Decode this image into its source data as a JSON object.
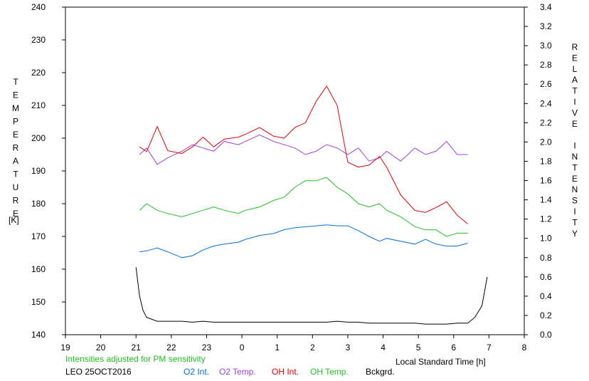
{
  "chart_data": {
    "type": "line",
    "xlabel": "Local Standard Time [h]",
    "y_left_label": "TEMPERATURE",
    "y_left_unit": "[K]",
    "y_right_label": "RELATIVE INTENSITY",
    "x_ticks": [
      "19",
      "20",
      "21",
      "22",
      "23",
      "0",
      "1",
      "2",
      "3",
      "4",
      "5",
      "6",
      "7",
      "8"
    ],
    "y_left_ticks": [
      "140",
      "150",
      "160",
      "170",
      "180",
      "190",
      "200",
      "210",
      "220",
      "230",
      "240"
    ],
    "y_right_ticks": [
      "0.0",
      "0.2",
      "0.4",
      "0.6",
      "0.8",
      "1.0",
      "1.2",
      "1.4",
      "1.6",
      "1.8",
      "2.0",
      "2.2",
      "2.4",
      "2.6",
      "2.8",
      "3.0",
      "3.2",
      "3.4"
    ],
    "xlim": [
      19,
      32
    ],
    "ylim_left": [
      140,
      240
    ],
    "ylim_right": [
      0,
      3.4
    ],
    "note": "Intensities adjusted for PM sensitivity",
    "station": "LEO 25OCT2016",
    "legend": [
      {
        "label": "O2 Int.",
        "color": "#0070e0"
      },
      {
        "label": "O2 Temp.",
        "color": "#a040e0"
      },
      {
        "label": "OH Int.",
        "color": "#e00000"
      },
      {
        "label": "OH Temp.",
        "color": "#20c020"
      },
      {
        "label": "Bckgrd.",
        "color": "#000000"
      }
    ],
    "series": [
      {
        "name": "O2 Int.",
        "axis": "right",
        "color": "#0070e0",
        "x": [
          21.1,
          21.3,
          21.6,
          21.9,
          22.3,
          22.6,
          22.9,
          23.2,
          23.5,
          23.9,
          24.1,
          24.5,
          24.9,
          25.2,
          25.5,
          25.8,
          26.1,
          26.4,
          26.7,
          27.0,
          27.3,
          27.6,
          27.9,
          28.1,
          28.5,
          28.9,
          29.2,
          29.5,
          29.8,
          30.1,
          30.4
        ],
        "y": [
          0.86,
          0.87,
          0.9,
          0.86,
          0.8,
          0.82,
          0.88,
          0.92,
          0.94,
          0.96,
          0.99,
          1.03,
          1.05,
          1.09,
          1.11,
          1.12,
          1.13,
          1.14,
          1.13,
          1.13,
          1.08,
          1.02,
          0.97,
          1.0,
          0.97,
          0.94,
          0.99,
          0.94,
          0.92,
          0.92,
          0.95
        ]
      },
      {
        "name": "O2 Temp.",
        "axis": "left",
        "color": "#a040e0",
        "x": [
          21.1,
          21.3,
          21.6,
          21.9,
          22.3,
          22.6,
          22.9,
          23.2,
          23.5,
          23.9,
          24.1,
          24.5,
          24.9,
          25.2,
          25.5,
          25.8,
          26.1,
          26.4,
          26.7,
          27.0,
          27.3,
          27.6,
          27.9,
          28.1,
          28.5,
          28.9,
          29.2,
          29.5,
          29.8,
          30.1,
          30.4
        ],
        "y": [
          195,
          197,
          192,
          194,
          196,
          198,
          197,
          196,
          199,
          198,
          199,
          201,
          199,
          198,
          197,
          195,
          196,
          198,
          197,
          195,
          197,
          193,
          194,
          196,
          193,
          197,
          195,
          196,
          199,
          195,
          195
        ]
      },
      {
        "name": "OH Int.",
        "axis": "right",
        "color": "#e00000",
        "x": [
          21.1,
          21.3,
          21.6,
          21.9,
          22.3,
          22.6,
          22.9,
          23.2,
          23.5,
          23.9,
          24.1,
          24.5,
          24.9,
          25.2,
          25.5,
          25.8,
          26.1,
          26.4,
          26.7,
          27.0,
          27.3,
          27.6,
          27.9,
          28.1,
          28.5,
          28.9,
          29.2,
          29.5,
          29.8,
          30.1,
          30.4
        ],
        "y": [
          1.95,
          1.9,
          2.16,
          1.91,
          1.88,
          1.95,
          2.05,
          1.95,
          2.03,
          2.05,
          2.08,
          2.15,
          2.06,
          2.04,
          2.15,
          2.2,
          2.42,
          2.58,
          2.38,
          1.79,
          1.74,
          1.76,
          1.85,
          1.74,
          1.45,
          1.29,
          1.27,
          1.32,
          1.38,
          1.24,
          1.15
        ]
      },
      {
        "name": "OH Temp.",
        "axis": "left",
        "color": "#20c020",
        "x": [
          21.1,
          21.3,
          21.6,
          21.9,
          22.3,
          22.6,
          22.9,
          23.2,
          23.5,
          23.9,
          24.1,
          24.5,
          24.9,
          25.2,
          25.5,
          25.8,
          26.1,
          26.4,
          26.7,
          27.0,
          27.3,
          27.6,
          27.9,
          28.1,
          28.5,
          28.9,
          29.2,
          29.5,
          29.8,
          30.1,
          30.4
        ],
        "y": [
          178,
          180,
          178,
          177,
          176,
          177,
          178,
          179,
          178,
          177,
          178,
          179,
          181,
          182,
          185,
          187,
          187,
          188,
          185,
          183,
          180,
          179,
          180,
          178,
          176,
          173,
          172,
          172,
          170,
          171,
          171
        ]
      },
      {
        "name": "Bckgrd.",
        "axis": "right",
        "color": "#000000",
        "x": [
          21.0,
          21.1,
          21.2,
          21.3,
          21.6,
          21.9,
          22.3,
          22.6,
          22.9,
          23.2,
          23.5,
          23.9,
          24.1,
          24.5,
          24.9,
          25.2,
          25.5,
          25.8,
          26.1,
          26.4,
          26.7,
          27.0,
          27.3,
          27.6,
          27.9,
          28.1,
          28.5,
          28.9,
          29.2,
          29.5,
          29.8,
          30.1,
          30.4,
          30.6,
          30.8,
          30.95
        ],
        "y": [
          0.7,
          0.4,
          0.25,
          0.18,
          0.14,
          0.14,
          0.14,
          0.13,
          0.14,
          0.13,
          0.13,
          0.13,
          0.13,
          0.13,
          0.13,
          0.13,
          0.13,
          0.13,
          0.13,
          0.13,
          0.14,
          0.13,
          0.13,
          0.12,
          0.12,
          0.12,
          0.12,
          0.12,
          0.11,
          0.11,
          0.11,
          0.12,
          0.12,
          0.18,
          0.3,
          0.6
        ]
      }
    ]
  }
}
